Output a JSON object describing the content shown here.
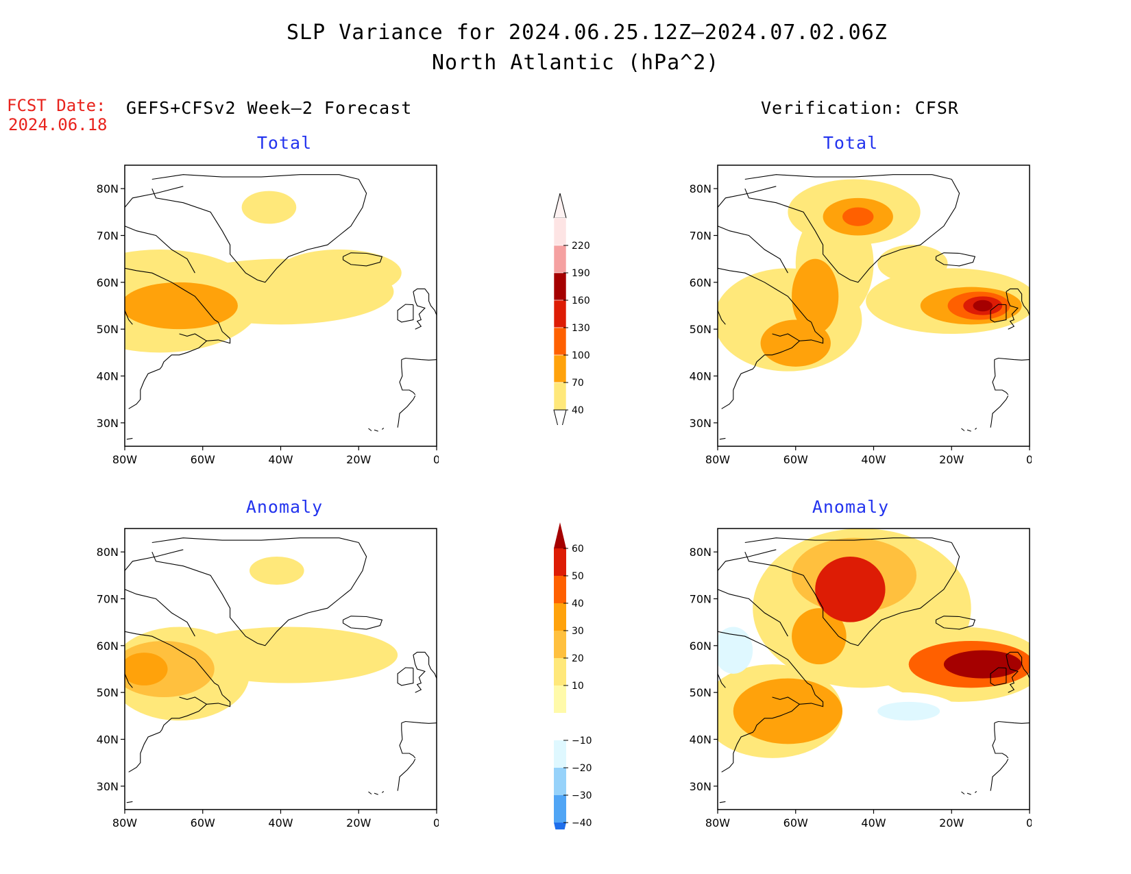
{
  "title": {
    "line1": "SLP Variance for 2024.06.25.12Z–2024.07.02.06Z",
    "line2": "North Atlantic (hPa^2)"
  },
  "forecast_date": {
    "label": "FCST Date:",
    "value": "2024.06.18"
  },
  "columns": {
    "left": "GEFS+CFSv2 Week–2 Forecast",
    "right": "Verification: CFSR"
  },
  "panels": [
    {
      "id": "fcst-total",
      "title": "Total"
    },
    {
      "id": "verif-total",
      "title": "Total"
    },
    {
      "id": "fcst-anomaly",
      "title": "Anomaly"
    },
    {
      "id": "verif-anomaly",
      "title": "Anomaly"
    }
  ],
  "axes": {
    "lat_labels": [
      "80N",
      "70N",
      "60N",
      "50N",
      "40N",
      "30N"
    ],
    "lat_values": [
      80,
      70,
      60,
      50,
      40,
      30
    ],
    "lon_labels": [
      "80W",
      "60W",
      "40W",
      "20W",
      "0"
    ],
    "lon_values": [
      -80,
      -60,
      -40,
      -20,
      0
    ],
    "lat_range": [
      25,
      85
    ],
    "lon_range": [
      -80,
      0
    ]
  },
  "colorbars": {
    "total": {
      "levels": [
        "40",
        "70",
        "100",
        "130",
        "160",
        "190",
        "220"
      ],
      "colors": [
        "#ffe87a",
        "#ffa20b",
        "#ff6000",
        "#dd1c05",
        "#a50000",
        "#f5a0a0",
        "#fde4e4"
      ]
    },
    "anomaly": {
      "levels": [
        "60",
        "50",
        "40",
        "30",
        "20",
        "10",
        "−10",
        "−20",
        "−30",
        "−40"
      ],
      "colors": [
        "#a50000",
        "#dd1c05",
        "#ff6000",
        "#ffa20b",
        "#ffc03e",
        "#ffe87a",
        "#fffaaa",
        "#ffffff",
        "#dff8ff",
        "#96d2fa",
        "#50a5f5",
        "#1e6eeb"
      ]
    }
  },
  "map_fields": {
    "fcst-total": [
      {
        "lon": -71,
        "lat": 56,
        "rx": 26,
        "ry": 11,
        "level": 1
      },
      {
        "lon": -40,
        "lat": 58,
        "rx": 29,
        "ry": 7,
        "level": 1
      },
      {
        "lon": -25,
        "lat": 62,
        "rx": 16,
        "ry": 5,
        "level": 1
      },
      {
        "lon": -43,
        "lat": 76,
        "rx": 7,
        "ry": 3.5,
        "level": 1
      },
      {
        "lon": -66,
        "lat": 55,
        "rx": 15,
        "ry": 5,
        "level": 2
      }
    ],
    "verif-total": [
      {
        "lon": -62,
        "lat": 52,
        "rx": 19,
        "ry": 11,
        "level": 1
      },
      {
        "lon": -45,
        "lat": 75,
        "rx": 17,
        "ry": 7,
        "level": 1
      },
      {
        "lon": -50,
        "lat": 64,
        "rx": 10,
        "ry": 12,
        "level": 1
      },
      {
        "lon": -20,
        "lat": 56,
        "rx": 22,
        "ry": 7,
        "level": 1
      },
      {
        "lon": -30,
        "lat": 64,
        "rx": 9,
        "ry": 4,
        "level": 1
      },
      {
        "lon": -60,
        "lat": 47,
        "rx": 9,
        "ry": 5,
        "level": 2
      },
      {
        "lon": -55,
        "lat": 57,
        "rx": 6,
        "ry": 8,
        "level": 2
      },
      {
        "lon": -44,
        "lat": 74,
        "rx": 9,
        "ry": 4,
        "level": 2
      },
      {
        "lon": -15,
        "lat": 55,
        "rx": 13,
        "ry": 4,
        "level": 2
      },
      {
        "lon": -44,
        "lat": 74,
        "rx": 4,
        "ry": 2,
        "level": 3
      },
      {
        "lon": -13,
        "lat": 55,
        "rx": 8,
        "ry": 3,
        "level": 3
      },
      {
        "lon": -12,
        "lat": 55,
        "rx": 5,
        "ry": 2,
        "level": 4
      },
      {
        "lon": -12,
        "lat": 55,
        "rx": 2.5,
        "ry": 1.2,
        "level": 5
      }
    ],
    "fcst-anomaly": [
      {
        "lon": -66,
        "lat": 54,
        "rx": 18,
        "ry": 10,
        "level": 6
      },
      {
        "lon": -38,
        "lat": 58,
        "rx": 28,
        "ry": 6,
        "level": 6
      },
      {
        "lon": -41,
        "lat": 76,
        "rx": 7,
        "ry": 3,
        "level": 6
      },
      {
        "lon": -70,
        "lat": 55,
        "rx": 13,
        "ry": 6,
        "level": 5
      },
      {
        "lon": -75,
        "lat": 55,
        "rx": 6,
        "ry": 3.5,
        "level": 4
      }
    ],
    "verif-anomaly": [
      {
        "lon": -43,
        "lat": 68,
        "rx": 28,
        "ry": 17,
        "level": 6
      },
      {
        "lon": -18,
        "lat": 56,
        "rx": 22,
        "ry": 8,
        "level": 6
      },
      {
        "lon": -66,
        "lat": 46,
        "rx": 18,
        "ry": 10,
        "level": 6
      },
      {
        "lon": -45,
        "lat": 75,
        "rx": 16,
        "ry": 8,
        "level": 5
      },
      {
        "lon": -62,
        "lat": 46,
        "rx": 14,
        "ry": 7,
        "level": 4
      },
      {
        "lon": -54,
        "lat": 62,
        "rx": 7,
        "ry": 6,
        "level": 4
      },
      {
        "lon": -15,
        "lat": 56,
        "rx": 16,
        "ry": 5,
        "level": 3
      },
      {
        "lon": -46,
        "lat": 72,
        "rx": 9,
        "ry": 7,
        "level": 2
      },
      {
        "lon": -12,
        "lat": 56,
        "rx": 10,
        "ry": 3,
        "level": 1
      },
      {
        "lon": -32,
        "lat": 45,
        "rx": 15,
        "ry": 5,
        "level": 8
      },
      {
        "lon": -31,
        "lat": 46,
        "rx": 8,
        "ry": 2,
        "level": 9
      },
      {
        "lon": -76,
        "lat": 59,
        "rx": 5,
        "ry": 5,
        "level": 9
      }
    ]
  },
  "coastlines": [
    [
      [
        -73,
        82
      ],
      [
        -65,
        83
      ],
      [
        -55,
        82.5
      ],
      [
        -45,
        82.5
      ],
      [
        -35,
        83
      ],
      [
        -25,
        83
      ],
      [
        -20,
        82
      ]
    ],
    [
      [
        -20,
        82
      ],
      [
        -18,
        79
      ],
      [
        -19,
        76
      ],
      [
        -22,
        72
      ],
      [
        -25,
        70
      ],
      [
        -28,
        68
      ],
      [
        -33,
        67
      ],
      [
        -38,
        65.5
      ],
      [
        -41,
        63
      ],
      [
        -44,
        60
      ],
      [
        -46,
        60.5
      ],
      [
        -49,
        62
      ],
      [
        -51,
        64
      ],
      [
        -53,
        66
      ],
      [
        -53,
        68
      ],
      [
        -55,
        71
      ],
      [
        -58,
        75
      ],
      [
        -65,
        77
      ],
      [
        -72,
        78
      ],
      [
        -73,
        80
      ]
    ],
    [
      [
        -80,
        76
      ],
      [
        -78,
        78
      ],
      [
        -72,
        79
      ],
      [
        -65,
        80.5
      ]
    ],
    [
      [
        -80,
        72
      ],
      [
        -77,
        71
      ],
      [
        -72,
        70
      ],
      [
        -68,
        67
      ],
      [
        -64,
        65
      ],
      [
        -62,
        62
      ]
    ],
    [
      [
        -80,
        63
      ],
      [
        -77,
        62.5
      ],
      [
        -73,
        62
      ],
      [
        -68,
        60
      ],
      [
        -65,
        58.5
      ],
      [
        -62,
        57
      ],
      [
        -60,
        55
      ],
      [
        -57,
        52
      ],
      [
        -56,
        51.5
      ]
    ],
    [
      [
        -80,
        54
      ],
      [
        -79,
        52
      ],
      [
        -78,
        51
      ]
    ],
    [
      [
        -66,
        49
      ],
      [
        -64,
        48.5
      ],
      [
        -62,
        49
      ],
      [
        -59,
        47.5
      ],
      [
        -61,
        46
      ],
      [
        -64,
        45
      ],
      [
        -66,
        44.5
      ],
      [
        -68,
        44.5
      ],
      [
        -70,
        43
      ],
      [
        -70.5,
        42
      ],
      [
        -71,
        41.5
      ],
      [
        -74,
        40.5
      ],
      [
        -75,
        39
      ],
      [
        -76,
        37
      ],
      [
        -76,
        35
      ],
      [
        -77,
        34
      ],
      [
        -79,
        33
      ]
    ],
    [
      [
        -59,
        47.5
      ],
      [
        -56,
        47.7
      ],
      [
        -53,
        47
      ],
      [
        -53,
        48
      ],
      [
        -55,
        49.5
      ],
      [
        -56,
        51.5
      ]
    ],
    [
      [
        -24,
        65.5
      ],
      [
        -22,
        66.3
      ],
      [
        -18,
        66.2
      ],
      [
        -14,
        65.5
      ],
      [
        -14.5,
        64.3
      ],
      [
        -18,
        63.5
      ],
      [
        -22,
        63.8
      ],
      [
        -24,
        64.8
      ],
      [
        -24,
        65.5
      ]
    ],
    [
      [
        -6,
        58
      ],
      [
        -5,
        58.6
      ],
      [
        -3,
        58.6
      ],
      [
        -2,
        57.5
      ],
      [
        -2,
        56
      ],
      [
        -1.5,
        55
      ],
      [
        -0.5,
        54
      ],
      [
        0,
        53
      ]
    ],
    [
      [
        -6,
        58
      ],
      [
        -5.5,
        56
      ],
      [
        -5,
        55
      ],
      [
        -3,
        54.5
      ],
      [
        -4.5,
        53.2
      ],
      [
        -4,
        52
      ],
      [
        -5,
        51.7
      ],
      [
        -4,
        50.6
      ],
      [
        -5.5,
        50
      ]
    ],
    [
      [
        -6,
        55.2
      ],
      [
        -8,
        55.3
      ],
      [
        -10,
        54
      ],
      [
        -10,
        52
      ],
      [
        -9,
        51.5
      ],
      [
        -6,
        52
      ],
      [
        -6,
        53.5
      ],
      [
        -6,
        55.2
      ]
    ],
    [
      [
        -9,
        43.5
      ],
      [
        -8,
        43.8
      ],
      [
        -4,
        43.5
      ],
      [
        -2,
        43.4
      ],
      [
        0,
        43.5
      ]
    ],
    [
      [
        -9,
        43.5
      ],
      [
        -9,
        42
      ],
      [
        -8.8,
        40
      ],
      [
        -9.5,
        38.7
      ],
      [
        -8.8,
        37
      ],
      [
        -7,
        37
      ],
      [
        -6,
        36.5
      ],
      [
        -5.5,
        36
      ]
    ],
    [
      [
        -5.5,
        35.8
      ],
      [
        -6,
        35
      ],
      [
        -7.5,
        33.5
      ],
      [
        -9.5,
        32
      ],
      [
        -9.8,
        30
      ],
      [
        -10,
        29
      ]
    ],
    [
      [
        -16,
        28.5
      ],
      [
        -15,
        28.2
      ]
    ],
    [
      [
        -17.5,
        28.8
      ],
      [
        -16.7,
        28.3
      ]
    ],
    [
      [
        -14,
        28.6
      ],
      [
        -13.6,
        28.9
      ]
    ],
    [
      [
        -79.5,
        26.5
      ],
      [
        -78,
        26.7
      ]
    ]
  ]
}
